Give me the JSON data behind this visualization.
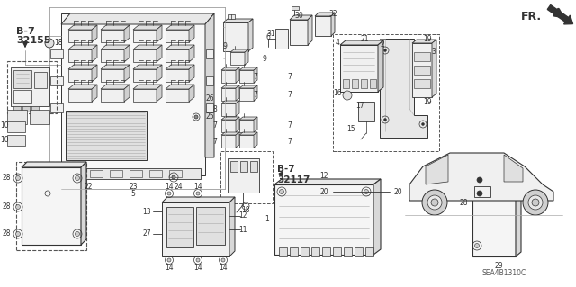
{
  "bg_color": "#ffffff",
  "diagram_code": "SEA4B1310C",
  "b7_32155": "B-7\n32155",
  "b7_32117": "B-7\n32117",
  "fr_label": "FR.",
  "fig_width": 6.4,
  "fig_height": 3.19,
  "line_color": "#333333",
  "light_gray": "#888888",
  "mid_gray": "#aaaaaa",
  "fill_gray": "#cccccc",
  "dashed_gray": "#555555"
}
